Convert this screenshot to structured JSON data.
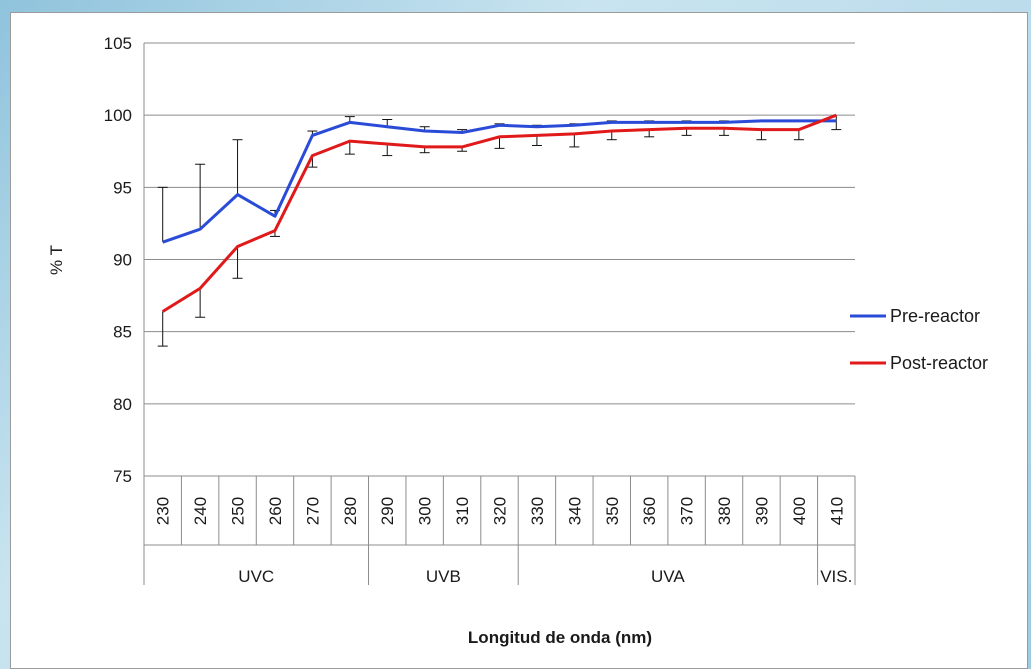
{
  "chart_data": {
    "type": "line",
    "title": "",
    "xlabel": "Longitud de onda (nm)",
    "ylabel": "% T",
    "ylim": [
      75,
      105
    ],
    "yticks": [
      "75",
      "80",
      "85",
      "90",
      "95",
      "100",
      "105"
    ],
    "categories": [
      "230",
      "240",
      "250",
      "260",
      "270",
      "280",
      "290",
      "300",
      "310",
      "320",
      "330",
      "340",
      "350",
      "360",
      "370",
      "380",
      "390",
      "400",
      "410"
    ],
    "groups": [
      {
        "label": "UVC",
        "start": 0,
        "end": 5
      },
      {
        "label": "UVB",
        "start": 6,
        "end": 9
      },
      {
        "label": "UVA",
        "start": 10,
        "end": 17
      },
      {
        "label": "VIS.",
        "start": 18,
        "end": 18
      }
    ],
    "grid": true,
    "legend_position": "right",
    "series": [
      {
        "name": "Pre-reactor",
        "color": "#2a4bd7",
        "values": [
          91.2,
          92.1,
          94.5,
          93.0,
          98.6,
          99.5,
          99.2,
          98.9,
          98.8,
          99.3,
          99.2,
          99.3,
          99.5,
          99.5,
          99.5,
          99.5,
          99.6,
          99.6,
          99.6
        ],
        "error_up": [
          3.8,
          4.5,
          3.8,
          0.4,
          0.3,
          0.4,
          0.5,
          0.3,
          0.2,
          0.1,
          0.1,
          0.1,
          0.1,
          0.1,
          0.1,
          0.1,
          0.0,
          0.0,
          0.0
        ]
      },
      {
        "name": "Post-reactor",
        "color": "#e01a1a",
        "values": [
          86.4,
          88.0,
          90.9,
          92.0,
          97.2,
          98.2,
          98.0,
          97.8,
          97.8,
          98.5,
          98.6,
          98.7,
          98.9,
          99.0,
          99.1,
          99.1,
          99.0,
          99.0,
          100.0
        ],
        "error_down": [
          2.4,
          2.0,
          2.2,
          0.4,
          0.8,
          0.9,
          0.8,
          0.4,
          0.3,
          0.8,
          0.7,
          0.9,
          0.6,
          0.5,
          0.5,
          0.5,
          0.7,
          0.7,
          1.0
        ]
      }
    ]
  }
}
